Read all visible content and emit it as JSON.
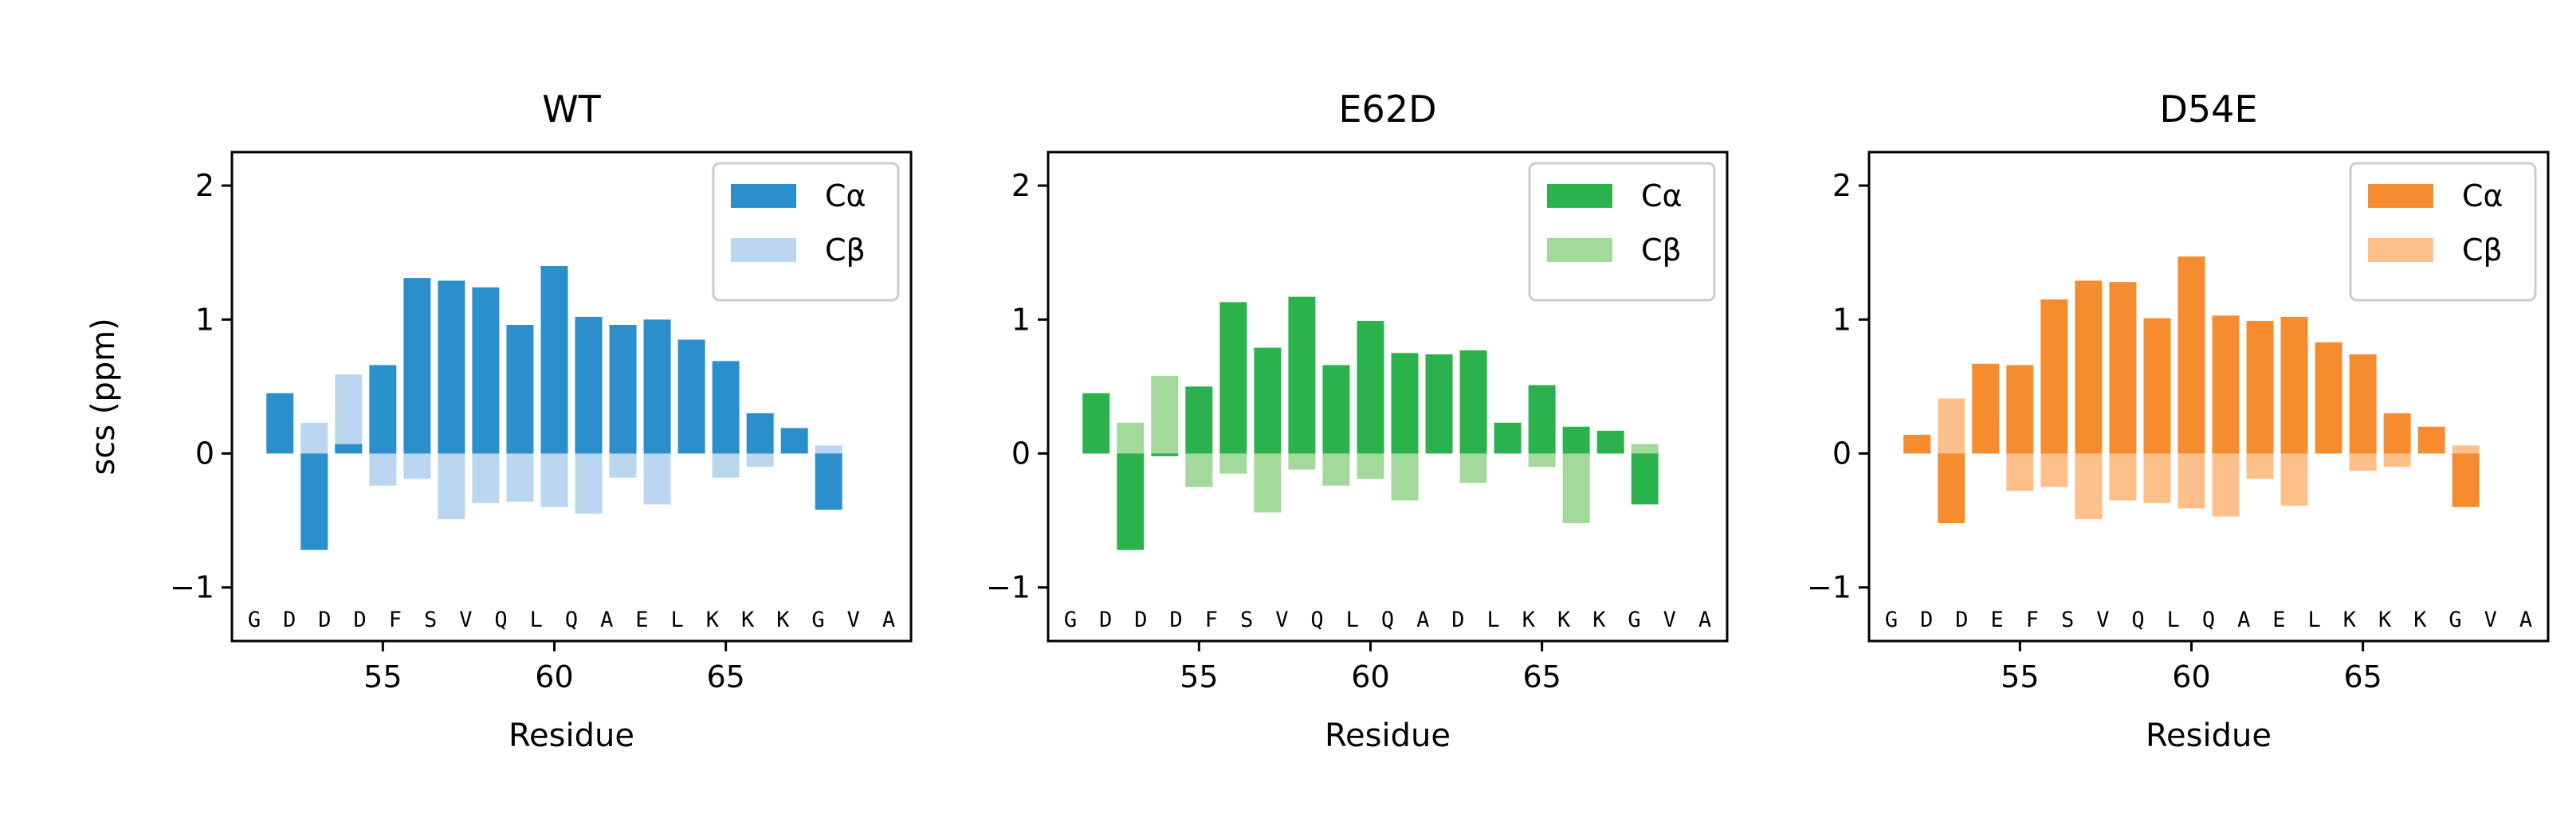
{
  "chart_data": [
    {
      "type": "bar",
      "title": "WT",
      "xlabel": "Residue",
      "ylabel": "scs (ppm)",
      "x": [
        52,
        53,
        54,
        55,
        56,
        57,
        58,
        59,
        60,
        61,
        62,
        63,
        64,
        65,
        66,
        67,
        68
      ],
      "xticks": [
        55,
        60,
        65
      ],
      "yticks": [
        -1,
        0,
        1,
        2
      ],
      "xlim": [
        50.6,
        70.4
      ],
      "ylim": [
        -1.4,
        2.25
      ],
      "sequence": [
        "G",
        "D",
        "D",
        "D",
        "F",
        "S",
        "V",
        "Q",
        "L",
        "Q",
        "A",
        "E",
        "L",
        "K",
        "K",
        "K",
        "G",
        "V",
        "A"
      ],
      "series": [
        {
          "name": "Cα",
          "color": "#2a8fcb",
          "values": [
            0.45,
            -0.72,
            0.07,
            0.66,
            1.31,
            1.29,
            1.24,
            0.96,
            1.4,
            1.02,
            0.96,
            1.0,
            0.85,
            0.69,
            0.3,
            0.19,
            -0.42
          ]
        },
        {
          "name": "Cβ",
          "color": "#bad7ef",
          "values": [
            0.0,
            0.23,
            0.59,
            -0.24,
            -0.19,
            -0.49,
            -0.37,
            -0.36,
            -0.4,
            -0.45,
            -0.18,
            -0.38,
            0.05,
            -0.18,
            -0.1,
            0.0,
            0.06
          ]
        }
      ]
    },
    {
      "type": "bar",
      "title": "E62D",
      "xlabel": "Residue",
      "ylabel": "",
      "x": [
        52,
        53,
        54,
        55,
        56,
        57,
        58,
        59,
        60,
        61,
        62,
        63,
        64,
        65,
        66,
        67,
        68
      ],
      "xticks": [
        55,
        60,
        65
      ],
      "yticks": [
        -1,
        0,
        1,
        2
      ],
      "xlim": [
        50.6,
        70.4
      ],
      "ylim": [
        -1.4,
        2.25
      ],
      "sequence": [
        "G",
        "D",
        "D",
        "D",
        "F",
        "S",
        "V",
        "Q",
        "L",
        "Q",
        "A",
        "D",
        "L",
        "K",
        "K",
        "K",
        "G",
        "V",
        "A"
      ],
      "series": [
        {
          "name": "Cα",
          "color": "#2bb24c",
          "values": [
            0.45,
            -0.72,
            -0.02,
            0.5,
            1.13,
            0.79,
            1.17,
            0.66,
            0.99,
            0.75,
            0.74,
            0.77,
            0.23,
            0.51,
            0.2,
            0.17,
            -0.38
          ]
        },
        {
          "name": "Cβ",
          "color": "#a3d99a",
          "values": [
            0.0,
            0.23,
            0.58,
            -0.25,
            -0.15,
            -0.44,
            -0.12,
            -0.24,
            -0.19,
            -0.35,
            0.0,
            -0.22,
            0.19,
            -0.1,
            -0.52,
            0.0,
            0.07
          ]
        }
      ]
    },
    {
      "type": "bar",
      "title": "D54E",
      "xlabel": "Residue",
      "ylabel": "",
      "x": [
        52,
        53,
        54,
        55,
        56,
        57,
        58,
        59,
        60,
        61,
        62,
        63,
        64,
        65,
        66,
        67,
        68
      ],
      "xticks": [
        55,
        60,
        65
      ],
      "yticks": [
        -1,
        0,
        1,
        2
      ],
      "xlim": [
        50.6,
        70.4
      ],
      "ylim": [
        -1.4,
        2.25
      ],
      "sequence": [
        "G",
        "D",
        "D",
        "E",
        "F",
        "S",
        "V",
        "Q",
        "L",
        "Q",
        "A",
        "E",
        "L",
        "K",
        "K",
        "K",
        "G",
        "V",
        "A"
      ],
      "series": [
        {
          "name": "Cα",
          "color": "#f58c2f",
          "values": [
            0.14,
            -0.52,
            0.67,
            0.66,
            1.15,
            1.29,
            1.28,
            1.01,
            1.47,
            1.03,
            0.99,
            1.02,
            0.83,
            0.74,
            0.3,
            0.2,
            -0.4
          ]
        },
        {
          "name": "Cβ",
          "color": "#fdc08a",
          "values": [
            0.0,
            0.41,
            0.26,
            -0.28,
            -0.25,
            -0.49,
            -0.35,
            -0.37,
            -0.41,
            -0.47,
            -0.19,
            -0.39,
            0.0,
            -0.13,
            -0.1,
            0.0,
            0.06
          ]
        }
      ]
    }
  ]
}
